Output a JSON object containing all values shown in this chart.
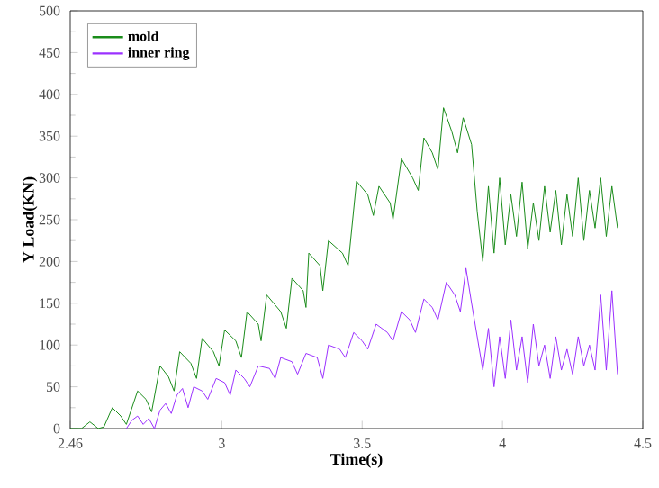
{
  "chart_data": {
    "type": "line",
    "xlabel": "Time(s)",
    "ylabel": "Y  Load(KN)",
    "xlim": [
      2.46,
      4.5
    ],
    "xticks": [
      2.46,
      3,
      3.5,
      4,
      4.5
    ],
    "ylim": [
      0,
      500
    ],
    "yticks": [
      0,
      50,
      100,
      150,
      200,
      250,
      300,
      350,
      400,
      450,
      500
    ],
    "grid": false,
    "legend": "top left",
    "marker": "none",
    "line_style": "solid",
    "series": [
      {
        "name": "mold",
        "color": "#1a8c1a",
        "x": [
          2.46,
          2.5,
          2.53,
          2.56,
          2.58,
          2.61,
          2.64,
          2.66,
          2.7,
          2.73,
          2.75,
          2.78,
          2.81,
          2.83,
          2.85,
          2.89,
          2.91,
          2.93,
          2.97,
          2.99,
          3.01,
          3.05,
          3.07,
          3.09,
          3.13,
          3.14,
          3.16,
          3.21,
          3.23,
          3.25,
          3.29,
          3.3,
          3.31,
          3.35,
          3.36,
          3.38,
          3.43,
          3.45,
          3.48,
          3.52,
          3.54,
          3.56,
          3.6,
          3.61,
          3.64,
          3.68,
          3.7,
          3.72,
          3.75,
          3.77,
          3.79,
          3.82,
          3.84,
          3.86,
          3.89,
          3.91,
          3.93,
          3.95,
          3.97,
          3.99,
          4.01,
          4.03,
          4.05,
          4.07,
          4.09,
          4.11,
          4.13,
          4.15,
          4.17,
          4.19,
          4.21,
          4.23,
          4.25,
          4.27,
          4.29,
          4.31,
          4.33,
          4.35,
          4.37,
          4.39,
          4.41
        ],
        "values": [
          0,
          0,
          8,
          0,
          2,
          25,
          15,
          5,
          45,
          35,
          20,
          75,
          62,
          45,
          92,
          78,
          60,
          108,
          92,
          75,
          118,
          105,
          85,
          140,
          125,
          105,
          160,
          140,
          120,
          180,
          165,
          145,
          210,
          195,
          165,
          225,
          210,
          195,
          296,
          280,
          255,
          290,
          270,
          250,
          323,
          300,
          285,
          348,
          330,
          310,
          384,
          355,
          330,
          372,
          340,
          260,
          200,
          290,
          210,
          300,
          220,
          280,
          230,
          295,
          215,
          270,
          225,
          290,
          235,
          285,
          220,
          280,
          230,
          300,
          225,
          285,
          240,
          300,
          230,
          290,
          240
        ]
      },
      {
        "name": "inner ring",
        "color": "#9b30ff",
        "x": [
          2.66,
          2.68,
          2.7,
          2.72,
          2.74,
          2.76,
          2.78,
          2.8,
          2.82,
          2.84,
          2.86,
          2.88,
          2.9,
          2.93,
          2.95,
          2.98,
          3.01,
          3.03,
          3.05,
          3.08,
          3.1,
          3.13,
          3.17,
          3.19,
          3.21,
          3.25,
          3.27,
          3.3,
          3.34,
          3.36,
          3.38,
          3.42,
          3.44,
          3.47,
          3.5,
          3.52,
          3.55,
          3.59,
          3.61,
          3.64,
          3.67,
          3.69,
          3.72,
          3.75,
          3.77,
          3.8,
          3.83,
          3.85,
          3.87,
          3.89,
          3.91,
          3.93,
          3.95,
          3.97,
          3.99,
          4.01,
          4.03,
          4.05,
          4.07,
          4.09,
          4.11,
          4.13,
          4.15,
          4.17,
          4.19,
          4.21,
          4.23,
          4.25,
          4.27,
          4.29,
          4.31,
          4.33,
          4.35,
          4.37,
          4.39,
          4.41
        ],
        "values": [
          0,
          10,
          15,
          5,
          12,
          0,
          22,
          30,
          18,
          40,
          48,
          25,
          50,
          45,
          35,
          60,
          55,
          40,
          70,
          60,
          50,
          75,
          72,
          60,
          85,
          80,
          65,
          90,
          85,
          60,
          100,
          95,
          85,
          115,
          105,
          95,
          125,
          115,
          105,
          140,
          130,
          115,
          155,
          145,
          130,
          175,
          160,
          140,
          192,
          150,
          110,
          70,
          120,
          50,
          110,
          60,
          130,
          70,
          110,
          55,
          125,
          75,
          100,
          60,
          110,
          70,
          95,
          65,
          110,
          75,
          100,
          70,
          160,
          70,
          165,
          65
        ]
      }
    ]
  }
}
